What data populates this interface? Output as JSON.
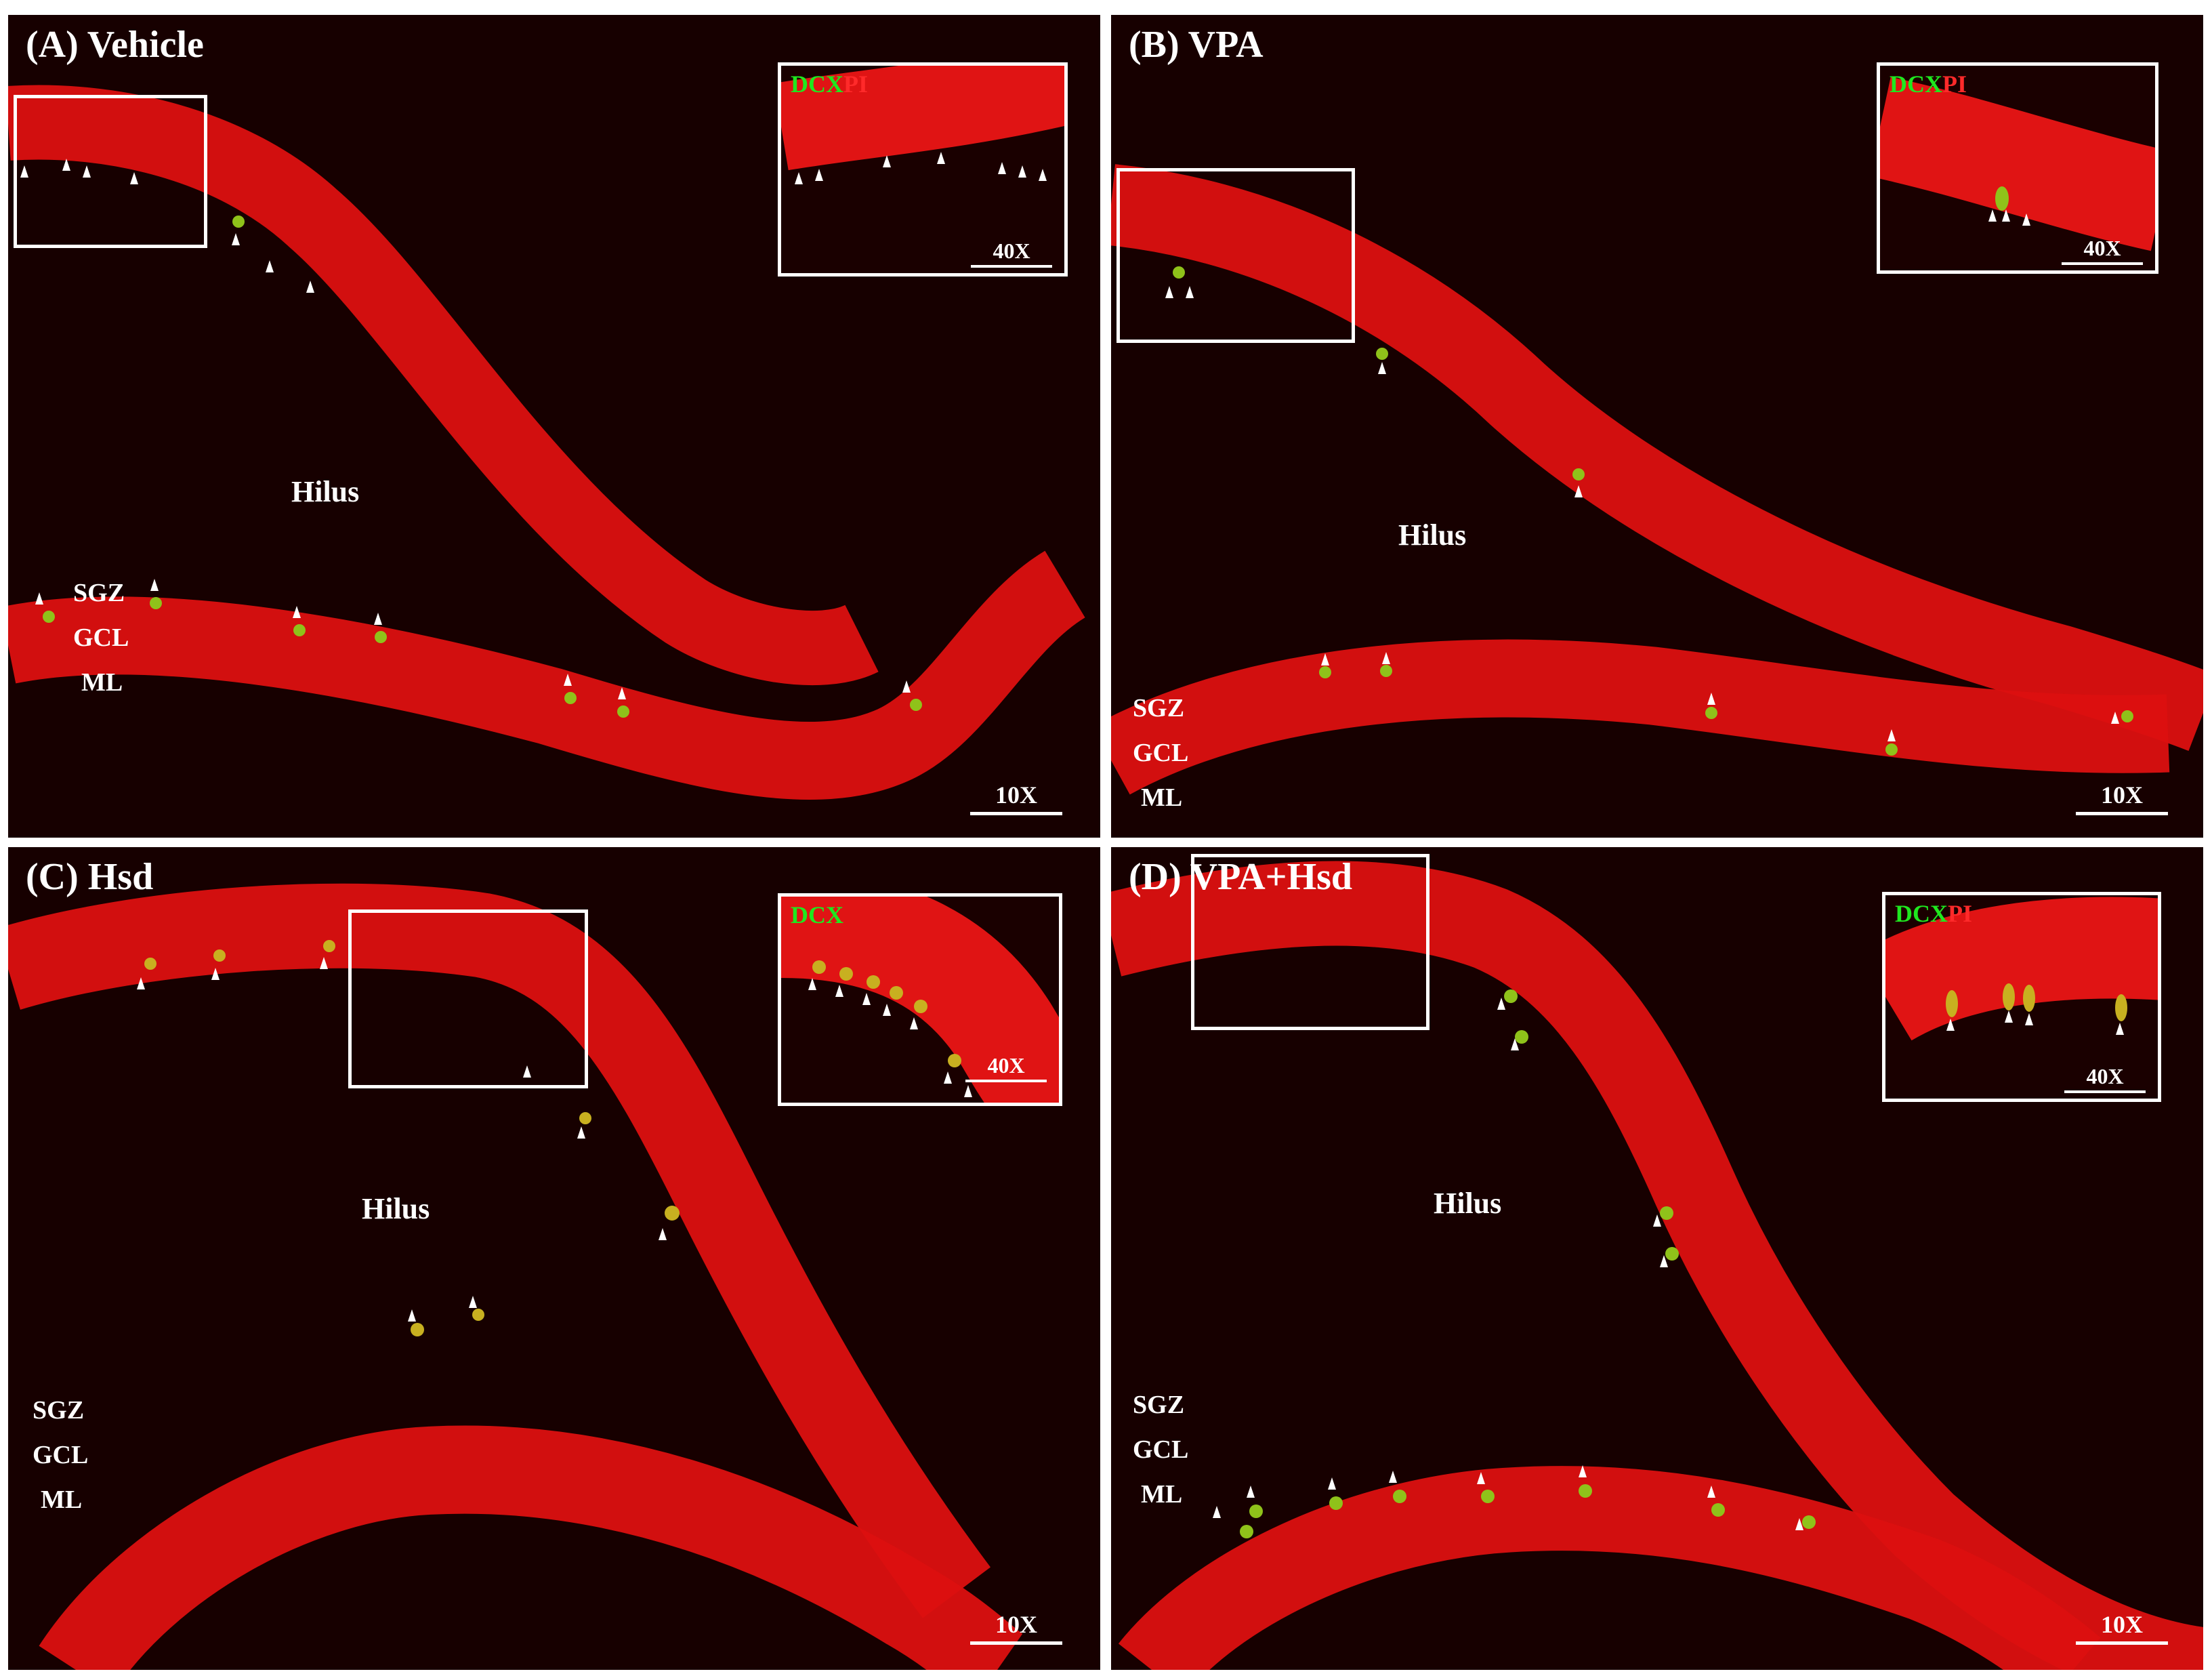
{
  "panels": [
    {
      "id": "A",
      "title": "(A) Vehicle",
      "hilus": "Hilus",
      "layers": [
        "SGZ",
        "GCL",
        "ML"
      ],
      "scale": "10X",
      "inset": {
        "legend_green": "DCX",
        "legend_red": "PI",
        "scale": "40X"
      }
    },
    {
      "id": "B",
      "title": "(B) VPA",
      "hilus": "Hilus",
      "layers": [
        "SGZ",
        "GCL",
        "ML"
      ],
      "scale": "10X",
      "inset": {
        "legend_green": "DCX",
        "legend_red": "PI",
        "scale": "40X"
      }
    },
    {
      "id": "C",
      "title": "(C) Hsd",
      "hilus": "Hilus",
      "layers": [
        "SGZ",
        "GCL",
        "ML"
      ],
      "scale": "10X",
      "inset": {
        "legend_green": "DCX",
        "legend_red": "",
        "scale": "40X"
      }
    },
    {
      "id": "D",
      "title": "(D) VPA+Hsd",
      "hilus": "Hilus",
      "layers": [
        "SGZ",
        "GCL",
        "ML"
      ],
      "scale": "10X",
      "inset": {
        "legend_green": "DCX",
        "legend_red": "PI",
        "scale": "40X"
      }
    }
  ],
  "colors": {
    "pi_red": "#e81010",
    "dcx_green": "#1fe81f",
    "background": "#170000",
    "arrowhead": "#ffffff"
  }
}
